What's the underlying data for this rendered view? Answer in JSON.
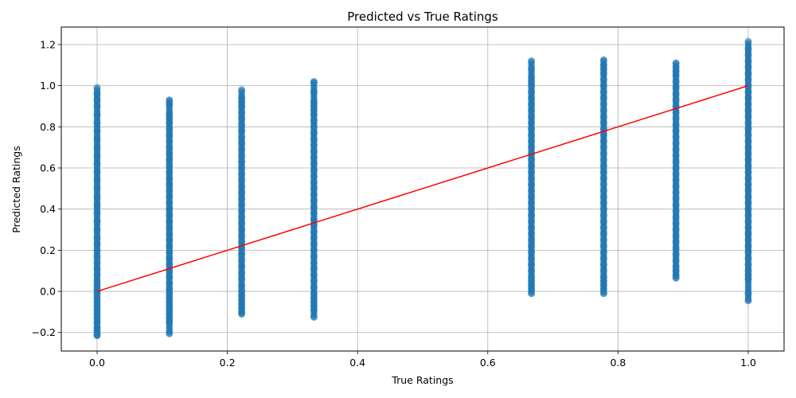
{
  "chart_data": {
    "type": "scatter",
    "title": "Predicted vs True Ratings",
    "xlabel": "True Ratings",
    "ylabel": "Predicted Ratings",
    "xlim": [
      -0.055,
      1.055
    ],
    "ylim": [
      -0.29,
      1.285
    ],
    "xticks": [
      0.0,
      0.2,
      0.4,
      0.6,
      0.8,
      1.0
    ],
    "xtick_labels": [
      "0.0",
      "0.2",
      "0.4",
      "0.6",
      "0.8",
      "1.0"
    ],
    "yticks": [
      -0.2,
      0.0,
      0.2,
      0.4,
      0.6,
      0.8,
      1.0,
      1.2
    ],
    "ytick_labels": [
      "−0.2",
      "0.0",
      "0.2",
      "0.4",
      "0.6",
      "0.8",
      "1.0",
      "1.2"
    ],
    "grid": true,
    "colors": {
      "points": "#1f77b4",
      "reference_line": "#ff0000",
      "grid": "#b0b0b0"
    },
    "series": [
      {
        "x": 0.0,
        "points": [
          -0.215,
          -0.21,
          -0.19,
          -0.175,
          -0.15,
          -0.13,
          -0.11,
          -0.09,
          -0.07,
          -0.05,
          -0.03,
          -0.01,
          0.01,
          0.03,
          0.05,
          0.08,
          0.11,
          0.14,
          0.17,
          0.2,
          0.23,
          0.26,
          0.3,
          0.34,
          0.38,
          0.42,
          0.46,
          0.5,
          0.54,
          0.58,
          0.62,
          0.66,
          0.7,
          0.74,
          0.78,
          0.82,
          0.86,
          0.9,
          0.93,
          0.96,
          0.99
        ]
      },
      {
        "x": 0.111,
        "points": [
          -0.205,
          -0.15,
          -0.13,
          -0.11,
          -0.09,
          -0.07,
          -0.05,
          -0.03,
          -0.01,
          0.01,
          0.04,
          0.07,
          0.1,
          0.13,
          0.16,
          0.19,
          0.22,
          0.25,
          0.28,
          0.31,
          0.34,
          0.37,
          0.4,
          0.43,
          0.46,
          0.49,
          0.52,
          0.55,
          0.58,
          0.61,
          0.64,
          0.67,
          0.7,
          0.73,
          0.76,
          0.79,
          0.82,
          0.84,
          0.86,
          0.91,
          0.93
        ]
      },
      {
        "x": 0.222,
        "points": [
          -0.11,
          -0.1,
          -0.08,
          -0.06,
          -0.04,
          -0.02,
          0.0,
          0.03,
          0.06,
          0.09,
          0.12,
          0.15,
          0.18,
          0.21,
          0.24,
          0.27,
          0.3,
          0.33,
          0.36,
          0.39,
          0.42,
          0.45,
          0.48,
          0.51,
          0.54,
          0.57,
          0.6,
          0.63,
          0.66,
          0.69,
          0.72,
          0.75,
          0.78,
          0.81,
          0.84,
          0.87,
          0.9,
          0.92,
          0.94,
          0.98
        ]
      },
      {
        "x": 0.333,
        "points": [
          -0.125,
          -0.09,
          -0.07,
          -0.05,
          -0.03,
          -0.01,
          0.02,
          0.05,
          0.08,
          0.11,
          0.14,
          0.17,
          0.2,
          0.23,
          0.26,
          0.29,
          0.32,
          0.35,
          0.38,
          0.41,
          0.44,
          0.47,
          0.5,
          0.53,
          0.56,
          0.59,
          0.62,
          0.65,
          0.68,
          0.71,
          0.74,
          0.77,
          0.8,
          0.83,
          0.86,
          0.88,
          0.9,
          0.92,
          0.97,
          1.015,
          1.02
        ]
      },
      {
        "x": 0.667,
        "points": [
          -0.01,
          0.01,
          0.03,
          0.05,
          0.07,
          0.1,
          0.13,
          0.16,
          0.19,
          0.22,
          0.25,
          0.28,
          0.31,
          0.34,
          0.37,
          0.4,
          0.43,
          0.46,
          0.49,
          0.52,
          0.55,
          0.58,
          0.61,
          0.64,
          0.67,
          0.7,
          0.73,
          0.76,
          0.79,
          0.82,
          0.85,
          0.88,
          0.91,
          0.94,
          0.97,
          1.0,
          1.02,
          1.04,
          1.08,
          1.12
        ]
      },
      {
        "x": 0.778,
        "points": [
          -0.01,
          0.01,
          0.03,
          0.05,
          0.07,
          0.1,
          0.13,
          0.16,
          0.19,
          0.22,
          0.25,
          0.28,
          0.31,
          0.34,
          0.37,
          0.4,
          0.43,
          0.46,
          0.49,
          0.52,
          0.55,
          0.58,
          0.61,
          0.64,
          0.67,
          0.7,
          0.73,
          0.76,
          0.79,
          0.82,
          0.85,
          0.88,
          0.91,
          0.94,
          0.97,
          1.0,
          1.03,
          1.06,
          1.08,
          1.1,
          1.125
        ]
      },
      {
        "x": 0.889,
        "points": [
          0.065,
          0.08,
          0.1,
          0.12,
          0.15,
          0.18,
          0.21,
          0.24,
          0.27,
          0.3,
          0.33,
          0.36,
          0.39,
          0.42,
          0.45,
          0.48,
          0.51,
          0.54,
          0.57,
          0.6,
          0.63,
          0.66,
          0.69,
          0.72,
          0.75,
          0.78,
          0.81,
          0.84,
          0.87,
          0.9,
          0.93,
          0.96,
          0.99,
          1.02,
          1.05,
          1.07,
          1.09,
          1.11
        ]
      },
      {
        "x": 1.0,
        "points": [
          -0.045,
          -0.01,
          0.06,
          0.08,
          0.1,
          0.13,
          0.16,
          0.19,
          0.22,
          0.25,
          0.28,
          0.31,
          0.34,
          0.37,
          0.4,
          0.43,
          0.46,
          0.49,
          0.52,
          0.55,
          0.58,
          0.61,
          0.64,
          0.67,
          0.7,
          0.73,
          0.76,
          0.79,
          0.82,
          0.85,
          0.88,
          0.91,
          0.94,
          0.97,
          1.0,
          1.03,
          1.06,
          1.09,
          1.12,
          1.15,
          1.18,
          1.215
        ]
      }
    ],
    "reference_line": {
      "x": [
        0.0,
        1.0
      ],
      "y": [
        0.0,
        1.0
      ]
    }
  }
}
